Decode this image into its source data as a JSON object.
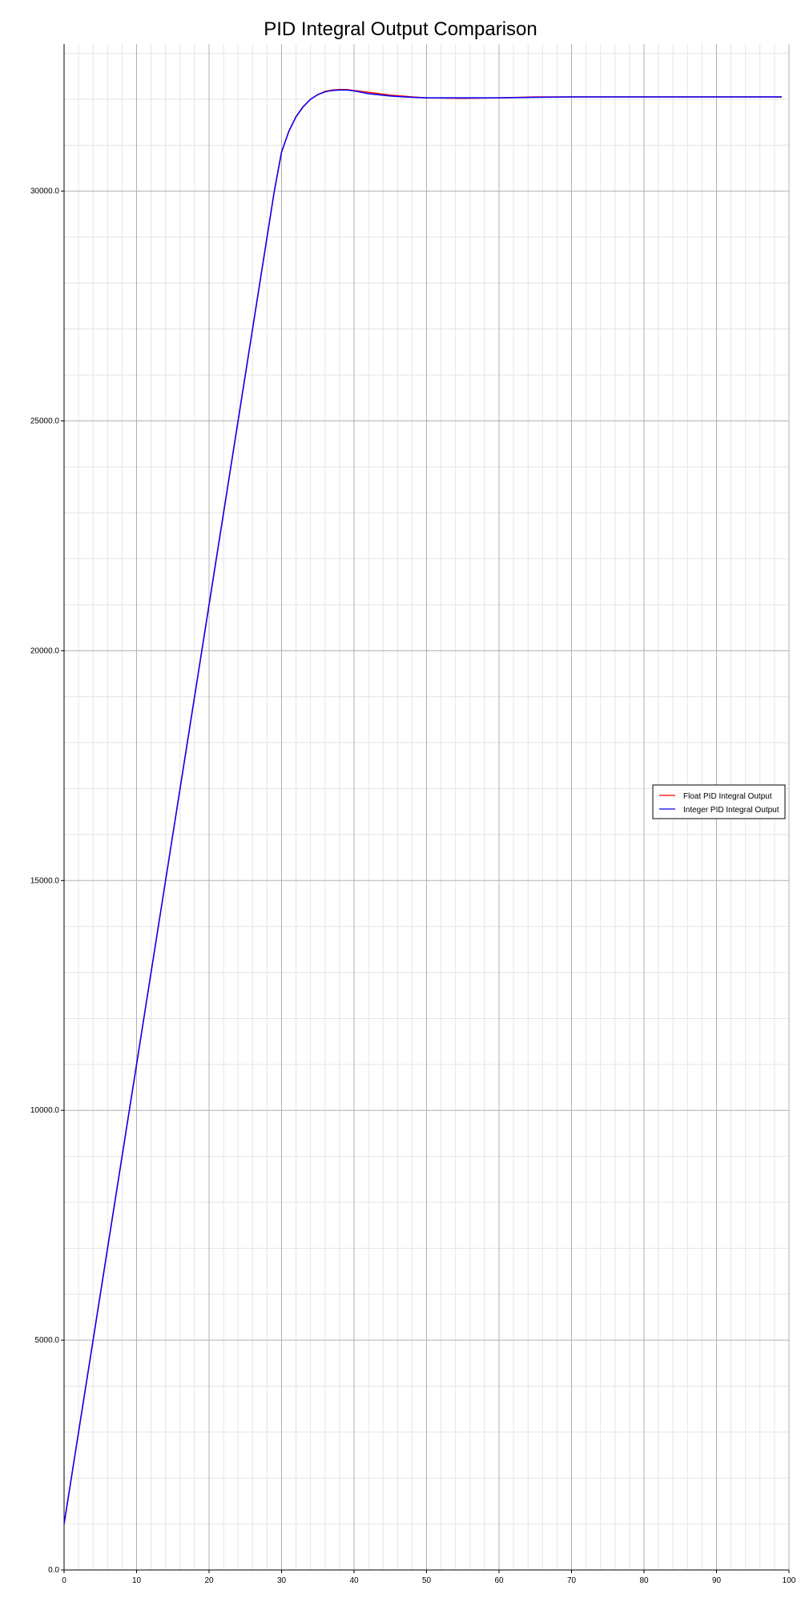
{
  "chart_data": {
    "type": "line",
    "title": "PID Integral Output Comparison",
    "xlabel": "",
    "ylabel": "",
    "xlim": [
      0,
      100
    ],
    "ylim": [
      0,
      33200
    ],
    "x_ticks": [
      0,
      10,
      20,
      30,
      40,
      50,
      60,
      70,
      80,
      90,
      100
    ],
    "x_tick_labels": [
      "0",
      "10",
      "20",
      "30",
      "40",
      "50",
      "60",
      "70",
      "80",
      "90",
      "100"
    ],
    "y_ticks": [
      0,
      5000,
      10000,
      15000,
      20000,
      25000,
      30000
    ],
    "y_tick_labels": [
      "0.0",
      "5000.0",
      "10000.0",
      "15000.0",
      "20000.0",
      "25000.0",
      "30000.0"
    ],
    "grid": true,
    "minor_grid": true,
    "legend_position": "right-middle",
    "series": [
      {
        "name": "Float PID Integral Output",
        "color": "#ff0000",
        "x": [
          0,
          5,
          10,
          15,
          20,
          25,
          29,
          30,
          31,
          32,
          33,
          34,
          35,
          36,
          37,
          38,
          39,
          40,
          42,
          45,
          48,
          50,
          55,
          60,
          65,
          70,
          80,
          90,
          99
        ],
        "y": [
          1000,
          6000,
          11000,
          16000,
          21000,
          26000,
          30000,
          30850,
          31300,
          31620,
          31840,
          32000,
          32100,
          32170,
          32200,
          32210,
          32210,
          32190,
          32150,
          32090,
          32050,
          32030,
          32020,
          32030,
          32050,
          32050,
          32050,
          32050,
          32050
        ]
      },
      {
        "name": "Integer PID Integral Output",
        "color": "#0000ff",
        "x": [
          0,
          5,
          10,
          15,
          20,
          25,
          29,
          30,
          31,
          32,
          33,
          34,
          35,
          36,
          37,
          38,
          39,
          40,
          42,
          45,
          48,
          50,
          55,
          60,
          65,
          70,
          80,
          90,
          99
        ],
        "y": [
          1000,
          6000,
          11000,
          16000,
          21000,
          26000,
          30000,
          30850,
          31300,
          31620,
          31840,
          32000,
          32100,
          32160,
          32190,
          32200,
          32200,
          32180,
          32120,
          32070,
          32040,
          32030,
          32030,
          32030,
          32040,
          32050,
          32050,
          32050,
          32050
        ]
      }
    ]
  }
}
